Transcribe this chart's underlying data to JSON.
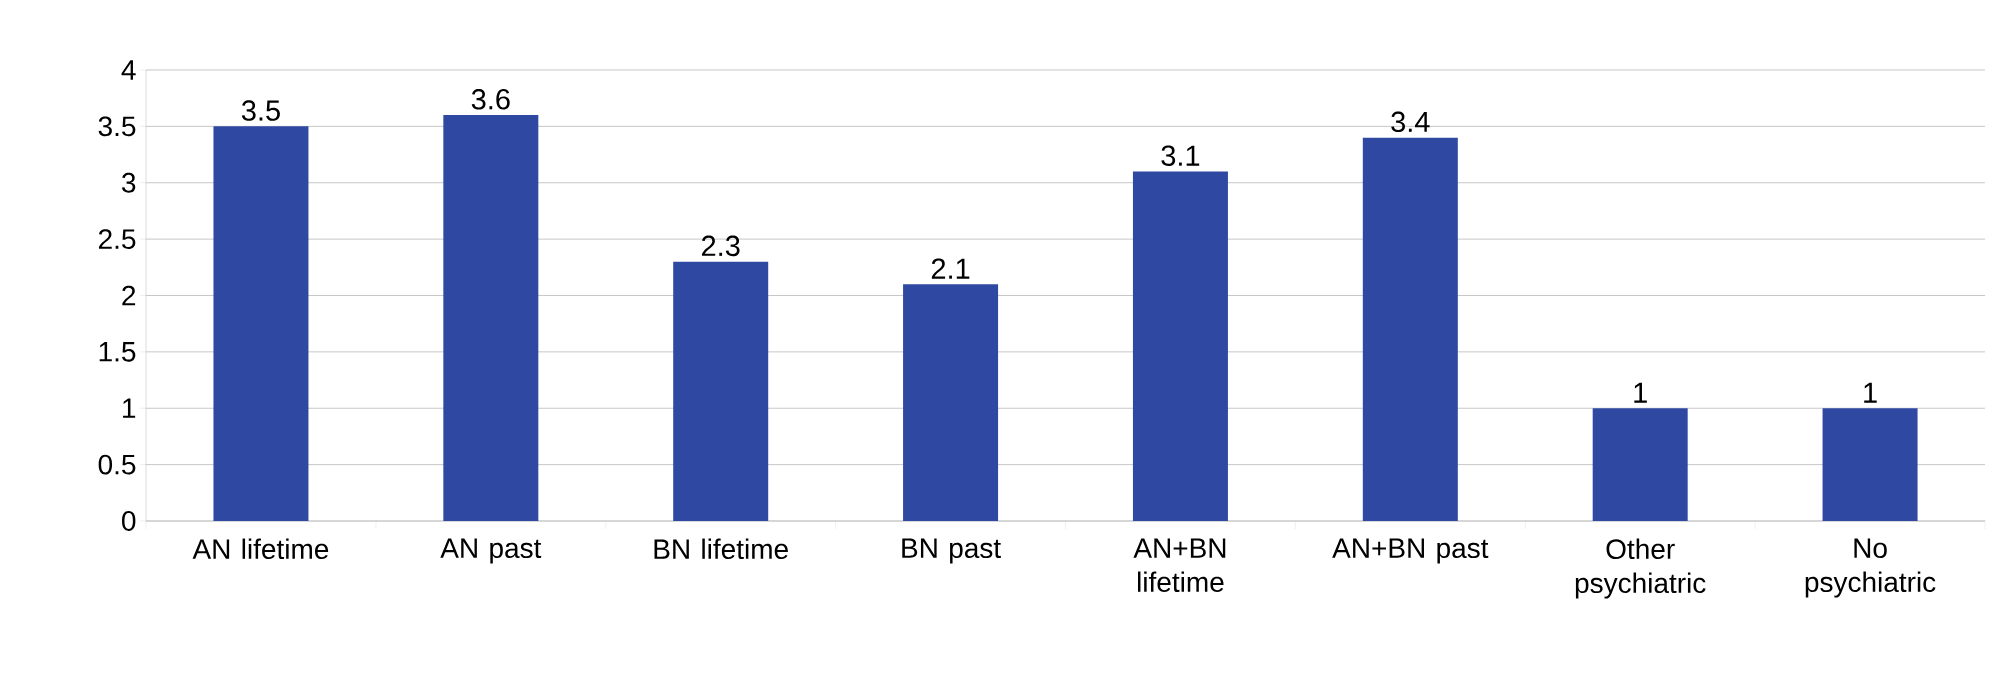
{
  "chart_data": {
    "type": "bar",
    "categories": [
      "AN lifetime",
      "AN past",
      "BN lifetime",
      "BN past",
      "AN+BN lifetime",
      "AN+BN past",
      "Other psychiatric",
      "No psychiatric"
    ],
    "values": [
      3.5,
      3.6,
      2.3,
      2.1,
      3.1,
      3.4,
      1,
      1
    ],
    "color": "#2f49a3",
    "ylim": [
      0,
      4
    ],
    "yticks": [
      0,
      0.5,
      1,
      1.5,
      2,
      2.5,
      3,
      3.5,
      4
    ],
    "grid": "y",
    "data_labels": true
  }
}
